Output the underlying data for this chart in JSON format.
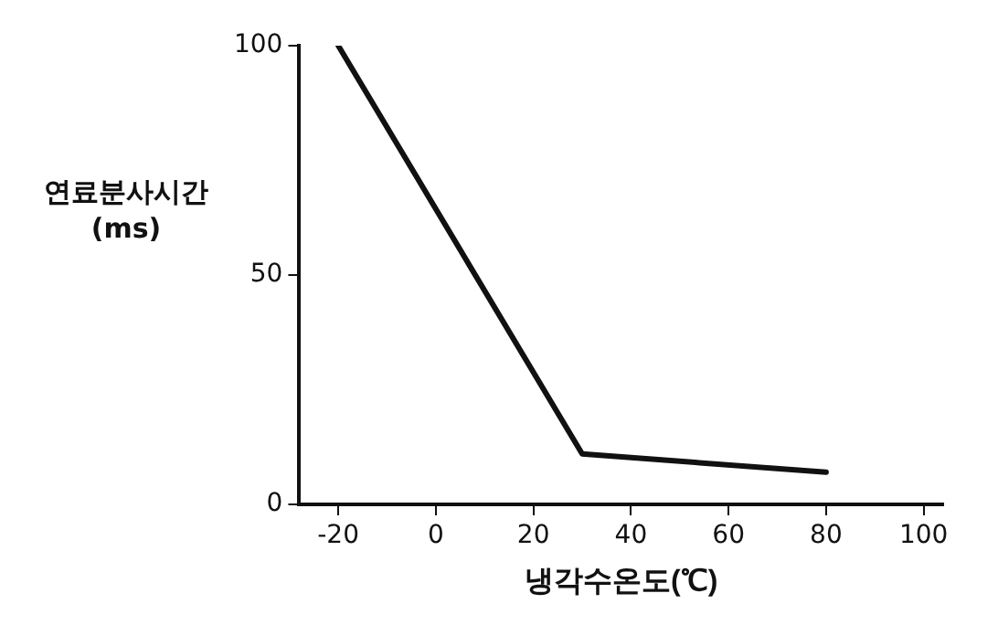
{
  "chart_data": {
    "type": "line",
    "xlabel": "냉각수온도(℃)",
    "ylabel": "연료분사시간\n(ms)",
    "x": [
      -20,
      30,
      80
    ],
    "series": [
      {
        "color": "#111111",
        "values": [
          100,
          11,
          7
        ]
      }
    ],
    "xlim": [
      -28,
      104
    ],
    "xticks": [
      -20,
      0,
      20,
      40,
      60,
      80,
      100
    ],
    "ylim": [
      0,
      100
    ],
    "yticks": [
      0,
      50,
      100
    ],
    "grid": false,
    "legend": false,
    "marker": "none",
    "line_style": "solid"
  }
}
